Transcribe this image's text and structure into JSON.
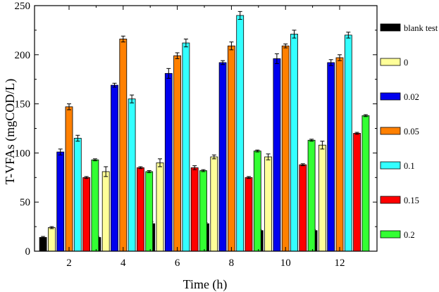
{
  "chart_data": {
    "type": "bar",
    "title": "",
    "xlabel": "Time (h)",
    "ylabel": "T-VFAs (mgCOD/L)",
    "ylim": [
      0,
      250
    ],
    "yticks": [
      "0",
      "50",
      "100",
      "150",
      "200",
      "250"
    ],
    "categories": [
      "2",
      "4",
      "6",
      "8",
      "10",
      "12"
    ],
    "grid": false,
    "legend_position": "right",
    "series": [
      {
        "name": "blank test",
        "color": "#000000",
        "values": [
          14,
          14,
          28,
          28,
          21,
          21
        ],
        "errors": [
          1,
          1,
          2,
          1,
          1,
          1
        ]
      },
      {
        "name": "0",
        "color": "#ffff99",
        "values": [
          24,
          81,
          90,
          96,
          96,
          108
        ],
        "errors": [
          1,
          5,
          4,
          2,
          3,
          4
        ]
      },
      {
        "name": "0.02",
        "color": "#0000ee",
        "values": [
          101,
          169,
          181,
          192,
          196,
          192
        ],
        "errors": [
          3,
          2,
          5,
          2,
          5,
          3
        ]
      },
      {
        "name": "0.05",
        "color": "#ff8000",
        "values": [
          147,
          216,
          199,
          209,
          209,
          197
        ],
        "errors": [
          3,
          3,
          3,
          4,
          2,
          3
        ]
      },
      {
        "name": "0.1",
        "color": "#33ffff",
        "values": [
          115,
          155,
          212,
          240,
          221,
          220
        ],
        "errors": [
          3,
          4,
          4,
          4,
          4,
          3
        ]
      },
      {
        "name": "0.15",
        "color": "#ff0000",
        "values": [
          75,
          85,
          85,
          75,
          88,
          120
        ],
        "errors": [
          1,
          1,
          2,
          1,
          1,
          1
        ]
      },
      {
        "name": "0.2",
        "color": "#33ff33",
        "values": [
          93,
          81,
          82,
          102,
          113,
          138
        ],
        "errors": [
          1,
          1,
          1,
          1,
          1,
          1
        ]
      }
    ]
  }
}
